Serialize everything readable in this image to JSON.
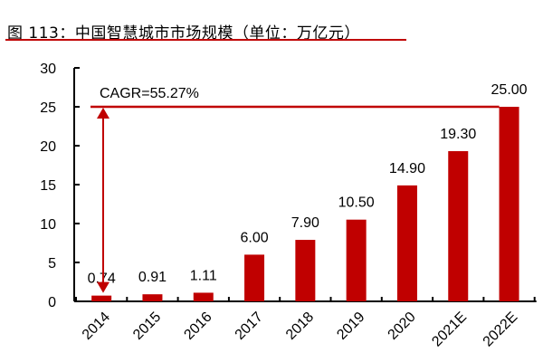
{
  "header": {
    "title": "图 113：中国智慧城市市场规模（单位：万亿元）"
  },
  "annotation": {
    "cagr_label": "CAGR=55.27%"
  },
  "colors": {
    "bar": "#c00000",
    "title_rule": "#c00000",
    "axis": "#000000"
  },
  "chart_data": {
    "type": "bar",
    "title": "图 113：中国智慧城市市场规模（单位：万亿元）",
    "xlabel": "",
    "ylabel": "",
    "categories": [
      "2014",
      "2015",
      "2016",
      "2017",
      "2018",
      "2019",
      "2020",
      "2021E",
      "2022E"
    ],
    "values": [
      0.74,
      0.91,
      1.11,
      6.0,
      7.9,
      10.5,
      14.9,
      19.3,
      25.0
    ],
    "value_labels": [
      "0.74",
      "0.91",
      "1.11",
      "6.00",
      "7.90",
      "10.50",
      "14.90",
      "19.30",
      "25.00"
    ],
    "ylim": [
      0,
      30
    ],
    "yticks": [
      "0",
      "5",
      "10",
      "15",
      "20",
      "25",
      "30"
    ],
    "grid": false,
    "legend": null,
    "annotations": [
      {
        "text": "CAGR=55.27%",
        "type": "double-arrow",
        "from_value": 0.74,
        "to_value": 25.0,
        "reference_line_at": 25
      }
    ]
  }
}
